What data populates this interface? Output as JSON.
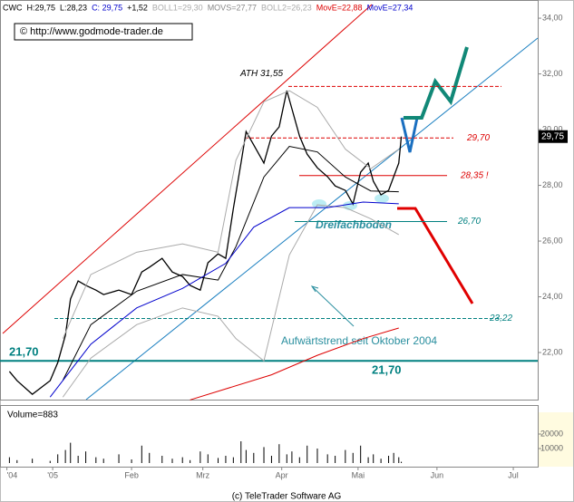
{
  "chart_data": [
    {
      "type": "line",
      "header": [
        {
          "text": "H:29,75",
          "color": "#000000"
        },
        {
          "text": "L:28,23",
          "color": "#000000"
        },
        {
          "text": "C: 29,75",
          "color": "#0000cc"
        },
        {
          "text": "+1,52",
          "color": "#000000"
        }
      ],
      "x": [
        -17,
        -14,
        -8,
        -1,
        2,
        5,
        7,
        10,
        13,
        17,
        20,
        26,
        31,
        35,
        38,
        43,
        47,
        51,
        54,
        58,
        61,
        65,
        68,
        71,
        74,
        76,
        79,
        83,
        86,
        89,
        92,
        94,
        97,
        100,
        104,
        108,
        111,
        115,
        118,
        121,
        124,
        126,
        129,
        132,
        134,
        136,
        137
      ],
      "series": [
        {
          "name": "CWC",
          "color": "#000000",
          "values": [
            21.32,
            20.99,
            20.5,
            20.99,
            21.64,
            22.62,
            23.92,
            24.57,
            24.41,
            24.24,
            24.08,
            24.24,
            24.08,
            24.89,
            25.06,
            25.38,
            24.89,
            24.73,
            24.41,
            24.24,
            25.22,
            25.54,
            25.38,
            27.17,
            28.8,
            29.93,
            29.45,
            28.8,
            29.77,
            30.1,
            31.4,
            30.75,
            29.77,
            29.12,
            28.63,
            28.31,
            27.98,
            27.82,
            27.33,
            28.47,
            28.8,
            28.15,
            27.66,
            27.82,
            28.31,
            28.8,
            29.75
          ]
        },
        {
          "name": "MOVS=27,77",
          "color": "#000000",
          "x": [
            4,
            15,
            33,
            51,
            65,
            72,
            83,
            93,
            104,
            115,
            125,
            136
          ],
          "values": [
            21.0,
            23.0,
            24.2,
            24.8,
            24.6,
            25.8,
            28.3,
            29.4,
            29.2,
            28.3,
            27.8,
            27.77
          ]
        },
        {
          "name": "BOLL1=29,30",
          "color": "#aaaaaa",
          "x": [
            4,
            15,
            33,
            51,
            65,
            72,
            83,
            93,
            104,
            115,
            125,
            136
          ],
          "values": [
            22.5,
            24.8,
            25.6,
            25.9,
            25.6,
            28.9,
            31.0,
            31.4,
            30.8,
            29.3,
            28.6,
            29.3
          ]
        },
        {
          "name": "BOLL2=26,23",
          "color": "#aaaaaa",
          "x": [
            4,
            15,
            33,
            51,
            65,
            72,
            83,
            93,
            104,
            115,
            125,
            136
          ],
          "values": [
            20.4,
            21.8,
            23.0,
            23.6,
            23.3,
            22.5,
            21.7,
            25.5,
            27.3,
            27.2,
            26.8,
            26.23
          ]
        },
        {
          "name": "MovE=22,88",
          "color": "#dd0000",
          "x": [
            54,
            86,
            104,
            122,
            136
          ],
          "values": [
            20.3,
            21.2,
            21.9,
            22.5,
            22.88
          ]
        },
        {
          "name": "MovE=27,34",
          "color": "#0000cc",
          "x": [
            -1,
            15,
            33,
            51,
            68,
            79,
            93,
            108,
            122,
            136
          ],
          "values": [
            20.4,
            22.3,
            23.6,
            24.3,
            25.2,
            26.5,
            27.2,
            27.2,
            27.4,
            27.34
          ]
        }
      ],
      "last": {
        "value": 29.75,
        "label": "29,75"
      },
      "levels": [
        {
          "value": 31.55,
          "labels": [
            "ATH 31,55"
          ],
          "color": "#dd0000",
          "dashed": true
        },
        {
          "value": 29.7,
          "labels": [
            "29,70"
          ],
          "color": "#dd0000",
          "dashed": true
        },
        {
          "value": 28.35,
          "labels": [
            "28,35 !"
          ],
          "color": "#dd0000",
          "dashed": false
        },
        {
          "value": 26.7,
          "labels": [
            "26,70"
          ],
          "color": "#008080",
          "dashed": false
        },
        {
          "value": 23.22,
          "labels": [
            "23,22"
          ],
          "color": "#008080",
          "dashed": true
        },
        {
          "value": 21.7,
          "labels": [
            "21,70",
            "21,70"
          ],
          "color": "#008080",
          "dashed": false
        }
      ],
      "annotations": [
        "Dreifachboden",
        "Aufwärtstrend seit Oktober 2004"
      ],
      "watermark": "© http://www.godmode-trader.de",
      "xlim": [
        -20.7,
        190.6
      ],
      "xticks": [
        {
          "value": -18,
          "label": "'04"
        },
        {
          "value": 0,
          "label": "'05"
        },
        {
          "value": 31,
          "label": "Feb"
        },
        {
          "value": 59,
          "label": "Mrz"
        },
        {
          "value": 90,
          "label": "Apr"
        },
        {
          "value": 120,
          "label": "Mai"
        },
        {
          "value": 151,
          "label": "Jun"
        },
        {
          "value": 181,
          "label": "Jul"
        }
      ],
      "ylim": [
        20.31,
        34.49
      ],
      "yticks": [
        {
          "value": 22,
          "label": "22,00"
        },
        {
          "value": 24,
          "label": "24,00"
        },
        {
          "value": 26,
          "label": "26,00"
        },
        {
          "value": 28,
          "label": "28,00"
        },
        {
          "value": 30,
          "label": "30,00"
        },
        {
          "value": 32,
          "label": "32,00"
        },
        {
          "value": 34,
          "label": "34,00"
        }
      ]
    },
    {
      "type": "bar",
      "title": "Volume=883",
      "color": "#000000",
      "values": [
        4000,
        2000,
        3000,
        1500,
        6000,
        9000,
        14000,
        5000,
        8000,
        4000,
        3000,
        6000,
        2500,
        12000,
        7000,
        5000,
        3000,
        4000,
        2000,
        8000,
        6000,
        3500,
        5000,
        4000,
        15000,
        9000,
        7000,
        11000,
        5000,
        13000,
        6000,
        8000,
        4000,
        12000,
        10000,
        6000,
        5000,
        9000,
        7000,
        12000,
        4000,
        6000,
        3000,
        5000,
        7000,
        4000,
        883
      ],
      "ylim": [
        0,
        40000
      ],
      "yticks": [
        10000,
        20000
      ],
      "footer": "(c) TeleTrader Software AG"
    }
  ]
}
